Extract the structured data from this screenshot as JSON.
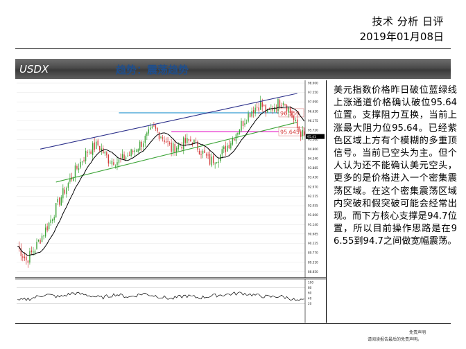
{
  "header": {
    "title": "技术 分析 日评",
    "date": "2019年01月08日"
  },
  "band": {
    "left_label": "USDX",
    "right_label": "趋势：震荡趋势"
  },
  "description": "美元指数价格昨日破位蓝绿线上涨通道价格确认破位95.64位置。支撑阻力互换，当前上涨最大阻力位95.64。已经紫色区域上方有个模糊的多重顶信号。当前已空头为主。但个人认为还不能确认美元空头，更多的是价格进入一个密集震荡区域。在这个密集震荡区域内突破和假突破可能会经常出现。而下方核心支撑是94.7位置，所以目前操作思路是在96.55到94.7之间做宽幅震荡。",
  "footer": {
    "line1": "免责声明",
    "line2": "请阅读报告最后的免责声明。"
  },
  "colors": {
    "up": "#3aa335",
    "down": "#d43b3b",
    "ma": "#000000",
    "channel_upper": "#2b2f8a",
    "channel_lower": "#3aa335",
    "resistance": "#4fa8d8",
    "support": "#e83ed0"
  },
  "chart_data": {
    "type": "candlestick",
    "title": "",
    "xlabel": "",
    "ylabel": "",
    "ylim": [
      88.8,
      98.0
    ],
    "y_ticks": [
      "98.000",
      "97.550",
      "97.090",
      "96.630",
      "96.175",
      "95.720",
      "95.260",
      "94.800",
      "94.340",
      "93.885",
      "93.430",
      "92.970",
      "92.515",
      "92.055",
      "91.600",
      "91.140",
      "90.685",
      "90.225",
      "89.770",
      "89.310",
      "88.850"
    ],
    "levels": [
      {
        "name": "resistance",
        "value": 96.559,
        "label": "96.559"
      },
      {
        "name": "support",
        "value": 95.645,
        "label": "95.645"
      }
    ],
    "current_price_label": "95.41",
    "n_bars": 165,
    "close_anchors": [
      [
        0,
        90.1
      ],
      [
        5,
        89.4
      ],
      [
        10,
        90.0
      ],
      [
        18,
        91.2
      ],
      [
        25,
        92.5
      ],
      [
        32,
        93.6
      ],
      [
        40,
        94.7
      ],
      [
        46,
        95.0
      ],
      [
        52,
        94.3
      ],
      [
        58,
        94.2
      ],
      [
        65,
        94.6
      ],
      [
        72,
        95.2
      ],
      [
        78,
        95.8
      ],
      [
        84,
        95.3
      ],
      [
        88,
        94.8
      ],
      [
        95,
        95.1
      ],
      [
        100,
        95.2
      ],
      [
        106,
        94.6
      ],
      [
        110,
        94.2
      ],
      [
        116,
        94.5
      ],
      [
        122,
        95.2
      ],
      [
        128,
        96.0
      ],
      [
        134,
        96.7
      ],
      [
        139,
        97.0
      ],
      [
        143,
        96.5
      ],
      [
        147,
        96.9
      ],
      [
        152,
        97.2
      ],
      [
        156,
        96.6
      ],
      [
        160,
        95.8
      ],
      [
        164,
        95.4
      ]
    ],
    "channels": [
      {
        "name": "blue_upper",
        "from": [
          13,
          94.8
        ],
        "to": [
          160,
          97.5
        ]
      },
      {
        "name": "green_lower",
        "from": [
          22,
          93.2
        ],
        "to": [
          160,
          96.1
        ]
      }
    ],
    "oscillator": {
      "ylim": [
        0,
        100
      ],
      "ticks": [
        "100",
        "80",
        "60",
        "40",
        "20"
      ],
      "anchors": [
        [
          0,
          30
        ],
        [
          8,
          40
        ],
        [
          16,
          55
        ],
        [
          24,
          45
        ],
        [
          32,
          60
        ],
        [
          40,
          52
        ],
        [
          48,
          42
        ],
        [
          56,
          55
        ],
        [
          64,
          45
        ],
        [
          72,
          58
        ],
        [
          80,
          48
        ],
        [
          88,
          38
        ],
        [
          96,
          50
        ],
        [
          104,
          42
        ],
        [
          112,
          50
        ],
        [
          120,
          55
        ],
        [
          128,
          60
        ],
        [
          136,
          52
        ],
        [
          144,
          45
        ],
        [
          150,
          48
        ],
        [
          156,
          40
        ],
        [
          160,
          30
        ],
        [
          164,
          32
        ]
      ]
    }
  }
}
